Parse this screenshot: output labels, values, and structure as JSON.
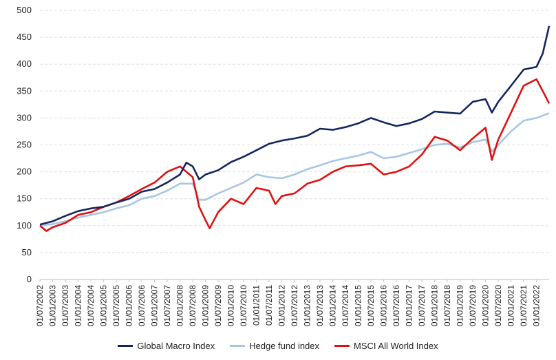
{
  "chart_data": {
    "type": "line",
    "title": "",
    "xlabel": "",
    "ylabel": "",
    "ylim": [
      0,
      500
    ],
    "yticks": [
      0,
      50,
      100,
      150,
      200,
      250,
      300,
      350,
      400,
      450,
      500
    ],
    "grid": true,
    "legend_position": "bottom",
    "x_tick_labels": [
      "01/07/2002",
      "01/01/2003",
      "01/07/2003",
      "01/01/2004",
      "01/07/2004",
      "01/01/2005",
      "01/07/2005",
      "01/01/2006",
      "01/07/2006",
      "01/01/2007",
      "01/07/2007",
      "01/01/2008",
      "01/07/2008",
      "01/01/2009",
      "01/07/2009",
      "01/01/2010",
      "01/07/2010",
      "01/01/2011",
      "01/07/2011",
      "01/01/2012",
      "01/07/2012",
      "01/01/2013",
      "01/07/2013",
      "01/01/2014",
      "01/07/2014",
      "01/01/2015",
      "01/07/2015",
      "01/01/2016",
      "01/07/2016",
      "01/01/2017",
      "01/07/2017",
      "01/01/2018",
      "01/07/2018",
      "01/01/2019",
      "01/07/2019",
      "01/01/2020",
      "01/07/2020",
      "01/01/2021",
      "01/07/2021",
      "01/01/2022"
    ],
    "series": [
      {
        "name": "Global Macro Index",
        "color": "#14265e",
        "points": [
          [
            "01/07/2002",
            102
          ],
          [
            "01/01/2003",
            108
          ],
          [
            "01/07/2003",
            118
          ],
          [
            "01/01/2004",
            127
          ],
          [
            "01/07/2004",
            132
          ],
          [
            "01/01/2005",
            135
          ],
          [
            "01/07/2005",
            143
          ],
          [
            "01/01/2006",
            150
          ],
          [
            "01/07/2006",
            163
          ],
          [
            "01/01/2007",
            168
          ],
          [
            "01/07/2007",
            180
          ],
          [
            "01/01/2008",
            195
          ],
          [
            "01/04/2008",
            217
          ],
          [
            "01/07/2008",
            210
          ],
          [
            "01/10/2008",
            186
          ],
          [
            "01/01/2009",
            195
          ],
          [
            "01/07/2009",
            203
          ],
          [
            "01/01/2010",
            218
          ],
          [
            "01/07/2010",
            228
          ],
          [
            "01/01/2011",
            240
          ],
          [
            "01/07/2011",
            252
          ],
          [
            "01/01/2012",
            258
          ],
          [
            "01/07/2012",
            262
          ],
          [
            "01/01/2013",
            267
          ],
          [
            "01/07/2013",
            280
          ],
          [
            "01/01/2014",
            278
          ],
          [
            "01/07/2014",
            283
          ],
          [
            "01/01/2015",
            290
          ],
          [
            "01/07/2015",
            300
          ],
          [
            "01/01/2016",
            292
          ],
          [
            "01/07/2016",
            285
          ],
          [
            "01/01/2017",
            290
          ],
          [
            "01/07/2017",
            298
          ],
          [
            "01/01/2018",
            312
          ],
          [
            "01/07/2018",
            310
          ],
          [
            "01/01/2019",
            308
          ],
          [
            "01/07/2019",
            330
          ],
          [
            "01/01/2020",
            335
          ],
          [
            "01/04/2020",
            310
          ],
          [
            "01/07/2020",
            330
          ],
          [
            "01/01/2021",
            360
          ],
          [
            "01/07/2021",
            390
          ],
          [
            "01/01/2022",
            395
          ],
          [
            "01/04/2022",
            420
          ],
          [
            "01/07/2022",
            471
          ]
        ]
      },
      {
        "name": "Hedge fund index",
        "color": "#a8c6e4",
        "points": [
          [
            "01/07/2002",
            100
          ],
          [
            "01/01/2003",
            103
          ],
          [
            "01/07/2003",
            108
          ],
          [
            "01/01/2004",
            115
          ],
          [
            "01/07/2004",
            120
          ],
          [
            "01/01/2005",
            125
          ],
          [
            "01/07/2005",
            132
          ],
          [
            "01/01/2006",
            138
          ],
          [
            "01/07/2006",
            150
          ],
          [
            "01/01/2007",
            155
          ],
          [
            "01/07/2007",
            165
          ],
          [
            "01/01/2008",
            178
          ],
          [
            "01/07/2008",
            178
          ],
          [
            "01/10/2008",
            148
          ],
          [
            "01/01/2009",
            148
          ],
          [
            "01/07/2009",
            160
          ],
          [
            "01/01/2010",
            170
          ],
          [
            "01/07/2010",
            180
          ],
          [
            "01/01/2011",
            195
          ],
          [
            "01/07/2011",
            190
          ],
          [
            "01/01/2012",
            188
          ],
          [
            "01/07/2012",
            195
          ],
          [
            "01/01/2013",
            205
          ],
          [
            "01/07/2013",
            212
          ],
          [
            "01/01/2014",
            220
          ],
          [
            "01/07/2014",
            225
          ],
          [
            "01/01/2015",
            230
          ],
          [
            "01/07/2015",
            237
          ],
          [
            "01/01/2016",
            225
          ],
          [
            "01/07/2016",
            228
          ],
          [
            "01/01/2017",
            235
          ],
          [
            "01/07/2017",
            242
          ],
          [
            "01/01/2018",
            250
          ],
          [
            "01/07/2018",
            252
          ],
          [
            "01/01/2019",
            245
          ],
          [
            "01/07/2019",
            255
          ],
          [
            "01/01/2020",
            260
          ],
          [
            "01/04/2020",
            238
          ],
          [
            "01/07/2020",
            250
          ],
          [
            "01/01/2021",
            275
          ],
          [
            "01/07/2021",
            295
          ],
          [
            "01/01/2022",
            300
          ],
          [
            "01/07/2022",
            309
          ]
        ]
      },
      {
        "name": "MSCI All World Index",
        "color": "#e01010",
        "points": [
          [
            "01/07/2002",
            100
          ],
          [
            "01/10/2002",
            90
          ],
          [
            "01/01/2003",
            97
          ],
          [
            "01/07/2003",
            105
          ],
          [
            "01/01/2004",
            120
          ],
          [
            "01/07/2004",
            125
          ],
          [
            "01/01/2005",
            135
          ],
          [
            "01/07/2005",
            143
          ],
          [
            "01/01/2006",
            155
          ],
          [
            "01/07/2006",
            168
          ],
          [
            "01/01/2007",
            180
          ],
          [
            "01/07/2007",
            200
          ],
          [
            "01/01/2008",
            210
          ],
          [
            "01/07/2008",
            190
          ],
          [
            "01/10/2008",
            135
          ],
          [
            "01/01/2009",
            110
          ],
          [
            "01/03/2009",
            95
          ],
          [
            "01/07/2009",
            125
          ],
          [
            "01/01/2010",
            150
          ],
          [
            "01/07/2010",
            140
          ],
          [
            "01/01/2011",
            170
          ],
          [
            "01/07/2011",
            165
          ],
          [
            "01/10/2011",
            140
          ],
          [
            "01/01/2012",
            155
          ],
          [
            "01/07/2012",
            160
          ],
          [
            "01/01/2013",
            178
          ],
          [
            "01/07/2013",
            185
          ],
          [
            "01/01/2014",
            200
          ],
          [
            "01/07/2014",
            210
          ],
          [
            "01/01/2015",
            212
          ],
          [
            "01/07/2015",
            215
          ],
          [
            "01/01/2016",
            195
          ],
          [
            "01/07/2016",
            200
          ],
          [
            "01/01/2017",
            210
          ],
          [
            "01/07/2017",
            232
          ],
          [
            "01/01/2018",
            265
          ],
          [
            "01/07/2018",
            258
          ],
          [
            "01/01/2019",
            240
          ],
          [
            "01/07/2019",
            262
          ],
          [
            "01/01/2020",
            282
          ],
          [
            "01/04/2020",
            222
          ],
          [
            "01/07/2020",
            260
          ],
          [
            "01/01/2021",
            310
          ],
          [
            "01/07/2021",
            360
          ],
          [
            "01/01/2022",
            372
          ],
          [
            "01/04/2022",
            350
          ],
          [
            "01/07/2022",
            327
          ]
        ]
      }
    ]
  }
}
